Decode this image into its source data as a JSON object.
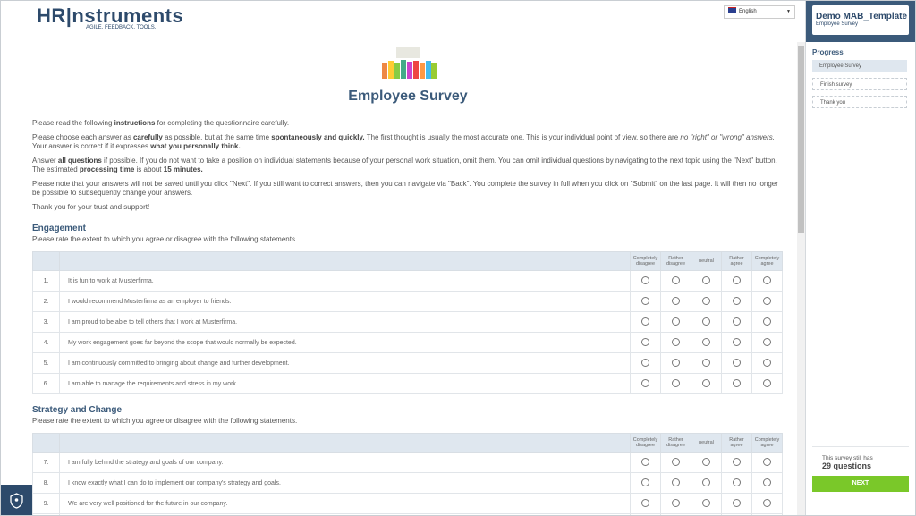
{
  "header": {
    "logo_main": "HR|nstruments",
    "logo_tagline": "AGILE. FEEDBACK. TOOLS.",
    "language": "English"
  },
  "title": "Employee Survey",
  "instructions": [
    [
      "Please read the following ",
      {
        "b": "instructions"
      },
      " for completing the questionnaire carefully."
    ],
    [
      "Please choose each answer as ",
      {
        "b": "carefully"
      },
      " as possible, but at the same time ",
      {
        "b": "spontaneously and quickly."
      },
      " The first thought is usually the most accurate one. This is your individual point of view, so there are ",
      {
        "i": "no \"right\" or \"wrong\" answers."
      },
      " Your answer is correct if it expresses ",
      {
        "b": "what you personally think."
      }
    ],
    [
      "Answer ",
      {
        "b": "all questions"
      },
      " if possible. If you do not want to take a position on individual statements because of your personal work situation, omit them. You can omit individual questions by navigating to the next topic using the \"Next\" button. The estimated ",
      {
        "b": "processing time"
      },
      " is about ",
      {
        "b": "15 minutes."
      }
    ],
    [
      "Please note that your answers will not be saved until you click \"Next\".  If you still want to correct answers, then you can navigate via \"Back\".  You complete the survey in full when you click on \"Submit\" on the last page. It will then no longer be possible to subsequently change your answers."
    ],
    [
      "Thank you for your trust and support!"
    ]
  ],
  "scale": [
    "Completely disagree",
    "Rather disagree",
    "neutral",
    "Rather agree",
    "Completely agree"
  ],
  "sections": [
    {
      "title": "Engagement",
      "subtitle": "Please rate the extent to which you agree or disagree with the following statements.",
      "questions": [
        {
          "num": "1.",
          "text": "It is fun to work at Musterfirma."
        },
        {
          "num": "2.",
          "text": "I would recommend Musterfirma as an employer to friends."
        },
        {
          "num": "3.",
          "text": "I am proud to be able to tell others that I work at Musterfirma."
        },
        {
          "num": "4.",
          "text": "My work engagement goes far beyond the scope that would normally be expected."
        },
        {
          "num": "5.",
          "text": "I am continuously committed to bringing about change and further development."
        },
        {
          "num": "6.",
          "text": "I am able to manage the requirements and stress in my work."
        }
      ]
    },
    {
      "title": "Strategy and Change",
      "subtitle": "Please rate the extent to which you agree or disagree with the following statements.",
      "questions": [
        {
          "num": "7.",
          "text": "I am fully behind the strategy and goals of our company."
        },
        {
          "num": "8.",
          "text": "I know exactly what I can do to implement our company's strategy and goals."
        },
        {
          "num": "9.",
          "text": "We are very well positioned for the future in our company."
        }
      ]
    }
  ],
  "sidebar": {
    "survey_name": "Demo MAB_Template",
    "survey_sub": "Employee Survey",
    "progress_title": "Progress",
    "steps": [
      "Employee Survey",
      "Finish survey",
      "Thank you"
    ],
    "remaining_text": "This survey still has",
    "remaining_count": "29 questions",
    "next": "NEXT"
  }
}
